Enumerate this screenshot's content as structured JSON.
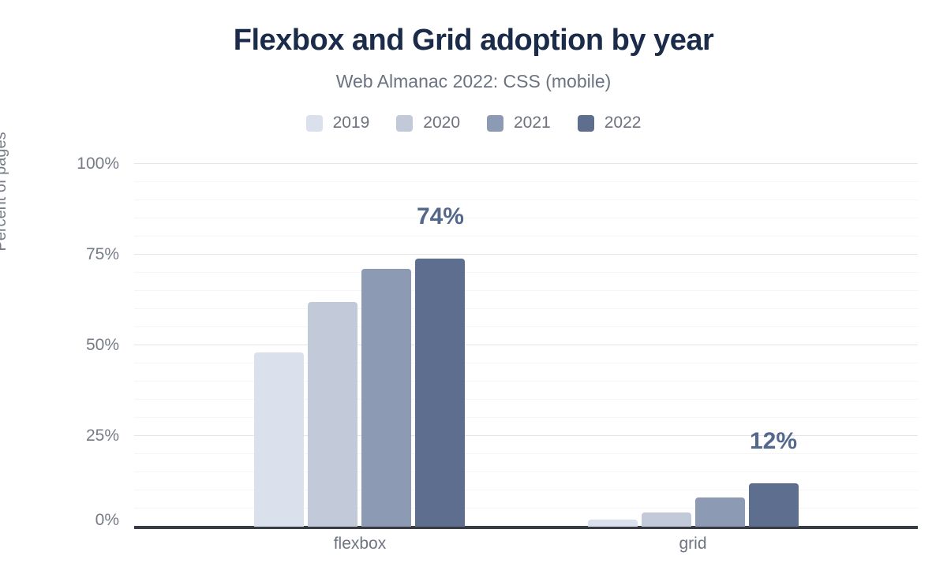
{
  "title": "Flexbox and Grid adoption by year",
  "subtitle": "Web Almanac 2022: CSS (mobile)",
  "colors": {
    "title_text": "#1b2b4a",
    "subtitle_text": "#6b7280",
    "tick_text": "#767b85",
    "annotation_text": "#54688c",
    "axis_line": "#363b44",
    "gridline_major": "#e5e5e8",
    "gridline_minor": "#f5f5f7",
    "series_2019": "#dbe1ec",
    "series_2020": "#c2cad9",
    "series_2021": "#8d9ab4",
    "series_2022": "#5d6e8e"
  },
  "chart_data": {
    "type": "bar",
    "categories": [
      "flexbox",
      "grid"
    ],
    "series": [
      {
        "name": "2019",
        "color": "#dbe1ec",
        "values": [
          48,
          2
        ]
      },
      {
        "name": "2020",
        "color": "#c2cad9",
        "values": [
          62,
          4
        ]
      },
      {
        "name": "2021",
        "color": "#8d9ab4",
        "values": [
          71,
          8
        ]
      },
      {
        "name": "2022",
        "color": "#5d6e8e",
        "values": [
          74,
          12
        ]
      }
    ],
    "annotations": [
      {
        "category": "flexbox",
        "series": "2022",
        "text": "74%"
      },
      {
        "category": "grid",
        "series": "2022",
        "text": "12%"
      }
    ],
    "title": "Flexbox and Grid adoption by year",
    "subtitle": "Web Almanac 2022: CSS (mobile)",
    "xlabel": "",
    "ylabel": "Percent of pages",
    "ylim": [
      0,
      100
    ],
    "yticks": [
      {
        "value": 0,
        "label": "0%"
      },
      {
        "value": 25,
        "label": "25%"
      },
      {
        "value": 50,
        "label": "50%"
      },
      {
        "value": 75,
        "label": "75%"
      },
      {
        "value": 100,
        "label": "100%"
      }
    ],
    "grid": "horizontal; minor lines every 5%, major lines every 25%",
    "legend_position": "top"
  }
}
